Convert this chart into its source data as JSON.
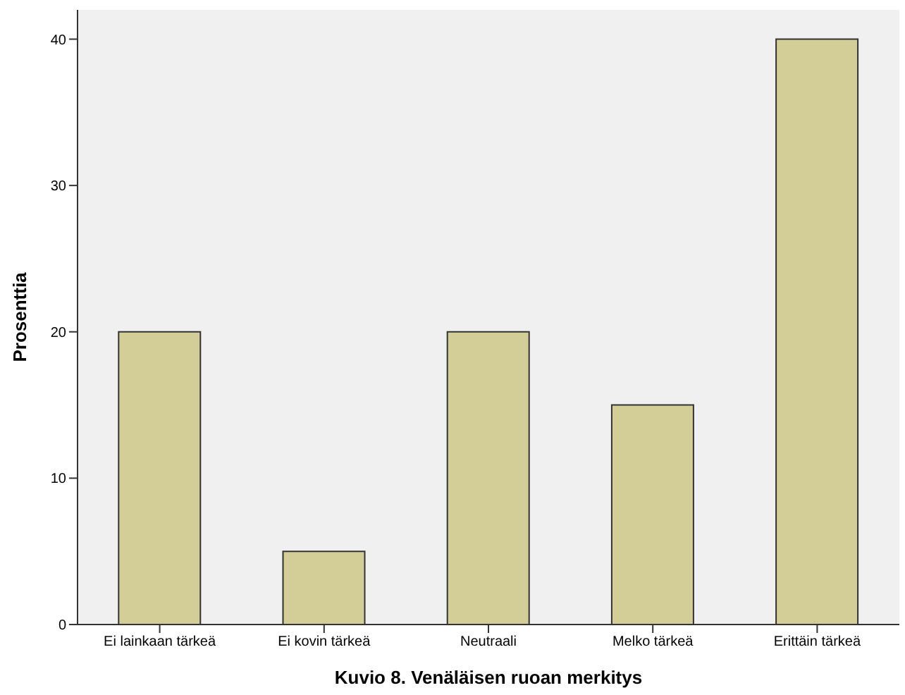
{
  "chart_data": {
    "type": "bar",
    "xlabel": "Kuvio 8. Venäläisen ruoan merkitys",
    "ylabel": "Prosenttia",
    "categories": [
      "Ei lainkaan tärkeä",
      "Ei kovin tärkeä",
      "Neutraali",
      "Melko tärkeä",
      "Erittäin tärkeä"
    ],
    "values": [
      20,
      5,
      20,
      15,
      40
    ],
    "color": "#d3ce97",
    "ylim": [
      0,
      42
    ],
    "yticks": [
      0,
      10,
      20,
      30,
      40
    ]
  }
}
